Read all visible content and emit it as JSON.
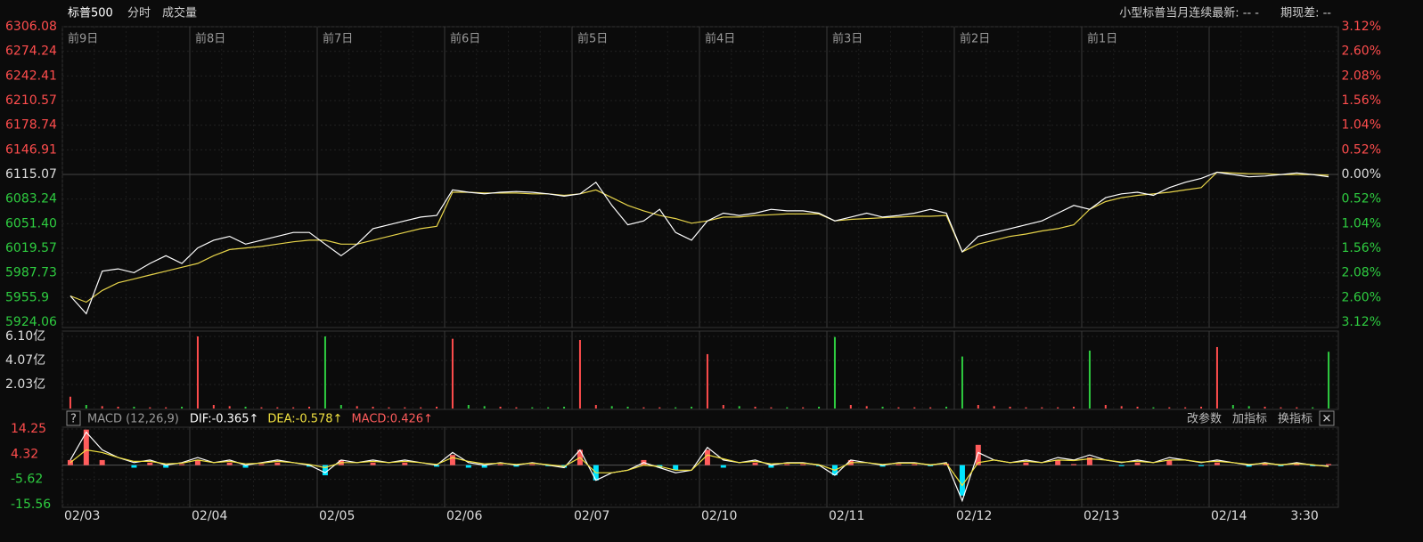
{
  "header": {
    "symbol": "标普500",
    "mode": "分时",
    "volume": "成交量",
    "latest": "小型标普当月连续最新: -- -",
    "basis": "期现差: --"
  },
  "chart_data": [
    {
      "type": "line",
      "period_labels": [
        "前9日",
        "前8日",
        "前7日",
        "前6日",
        "前5日",
        "前4日",
        "前3日",
        "前2日",
        "前1日"
      ],
      "series": [
        {
          "color": "#ffffff",
          "values": [
            5958,
            5935,
            5990,
            5993,
            5988,
            6000,
            6010,
            6000,
            6020,
            6030,
            6035,
            6025,
            6030,
            6035,
            6040,
            6040,
            6025,
            6010,
            6025,
            6045,
            6050,
            6055,
            6060,
            6062,
            6095,
            6092,
            6090,
            6092,
            6093,
            6092,
            6090,
            6087,
            6090,
            6105,
            6075,
            6050,
            6055,
            6070,
            6040,
            6030,
            6055,
            6065,
            6062,
            6065,
            6070,
            6068,
            6068,
            6065,
            6055,
            6060,
            6065,
            6060,
            6062,
            6065,
            6070,
            6065,
            6015,
            6035,
            6040,
            6045,
            6050,
            6055,
            6065,
            6075,
            6070,
            6085,
            6090,
            6092,
            6088,
            6098,
            6105,
            6110,
            6118,
            6115,
            6112,
            6113,
            6115,
            6117,
            6115,
            6112
          ]
        },
        {
          "color": "#e6d34a",
          "values": [
            5958,
            5950,
            5965,
            5975,
            5980,
            5985,
            5990,
            5995,
            6000,
            6010,
            6018,
            6020,
            6022,
            6025,
            6028,
            6030,
            6030,
            6025,
            6025,
            6030,
            6035,
            6040,
            6045,
            6048,
            6092,
            6092,
            6091,
            6091,
            6091,
            6090,
            6090,
            6088,
            6090,
            6095,
            6085,
            6075,
            6068,
            6062,
            6058,
            6052,
            6055,
            6060,
            6060,
            6062,
            6063,
            6064,
            6064,
            6064,
            6055,
            6057,
            6058,
            6059,
            6060,
            6061,
            6061,
            6062,
            6015,
            6025,
            6030,
            6035,
            6038,
            6042,
            6045,
            6050,
            6070,
            6080,
            6085,
            6088,
            6090,
            6092,
            6095,
            6098,
            6118,
            6117,
            6116,
            6116,
            6115,
            6115,
            6115,
            6114
          ]
        }
      ],
      "ylim": [
        5924.06,
        6306.08
      ],
      "yticks": [
        6306.08,
        6274.24,
        6242.41,
        6210.57,
        6178.74,
        6146.91,
        6115.07,
        6083.24,
        {
          "value": 6051.4,
          "label": "6051.40"
        },
        6019.57,
        5987.73,
        5955.9,
        5924.06
      ],
      "y2lim": [
        -3.12,
        3.12
      ],
      "y2ticks": [
        {
          "value": 3.12,
          "label": "3.12%"
        },
        {
          "value": 2.6,
          "label": "2.60%"
        },
        {
          "value": 2.08,
          "label": "2.08%"
        },
        {
          "value": 1.56,
          "label": "1.56%"
        },
        {
          "value": 1.04,
          "label": "1.04%"
        },
        {
          "value": 0.52,
          "label": "0.52%"
        },
        {
          "value": 0,
          "label": "0.00%"
        },
        {
          "value": -0.52,
          "label": "0.52%"
        },
        {
          "value": -1.04,
          "label": "1.04%"
        },
        {
          "value": -1.56,
          "label": "1.56%"
        },
        {
          "value": -2.08,
          "label": "2.08%"
        },
        {
          "value": -2.6,
          "label": "2.60%"
        },
        {
          "value": -3.12,
          "label": "3.12%"
        }
      ],
      "up_color": "#ff4d4d",
      "down_color": "#2ecc40",
      "flat_color": "#dddddd"
    },
    {
      "type": "bar",
      "values": [
        1.0,
        0.3,
        0.2,
        0.15,
        0.15,
        0.1,
        0.1,
        0.15,
        6.1,
        0.3,
        0.2,
        0.15,
        0.1,
        0.1,
        0.1,
        0.15,
        6.1,
        0.3,
        0.2,
        0.15,
        0.1,
        0.1,
        0.1,
        0.15,
        5.9,
        0.3,
        0.2,
        0.15,
        0.1,
        0.1,
        0.1,
        0.15,
        5.8,
        0.3,
        0.2,
        0.15,
        0.1,
        0.1,
        0.1,
        0.15,
        4.6,
        0.3,
        0.2,
        0.15,
        0.1,
        0.1,
        0.1,
        0.15,
        6.05,
        0.3,
        0.2,
        0.15,
        0.1,
        0.1,
        0.1,
        0.15,
        4.4,
        0.3,
        0.2,
        0.15,
        0.1,
        0.1,
        0.1,
        0.15,
        4.9,
        0.3,
        0.2,
        0.15,
        0.1,
        0.1,
        0.1,
        0.15,
        5.2,
        0.3,
        0.2,
        0.15,
        0.1,
        0.1,
        0.1,
        4.8
      ],
      "ylim": [
        0,
        6.1
      ],
      "yticks": [
        {
          "value": 6.1,
          "label": "6.10亿"
        },
        {
          "value": 4.07,
          "label": "4.07亿"
        },
        {
          "value": 2.03,
          "label": "2.03亿"
        }
      ],
      "up_color": "#ff4d4d",
      "down_color": "#2ecc40"
    },
    {
      "type": "macd",
      "title": "MACD (12,26,9)",
      "categories": [
        "02/03",
        null,
        null,
        null,
        null,
        null,
        null,
        null,
        "02/04",
        null,
        null,
        null,
        null,
        null,
        null,
        null,
        "02/05",
        null,
        null,
        null,
        null,
        null,
        null,
        null,
        "02/06",
        null,
        null,
        null,
        null,
        null,
        null,
        null,
        "02/07",
        null,
        null,
        null,
        null,
        null,
        null,
        null,
        "02/10",
        null,
        null,
        null,
        null,
        null,
        null,
        null,
        "02/11",
        null,
        null,
        null,
        null,
        null,
        null,
        null,
        "02/12",
        null,
        null,
        null,
        null,
        null,
        null,
        null,
        "02/13",
        null,
        null,
        null,
        null,
        null,
        null,
        null,
        "02/14",
        null,
        null,
        null,
        null,
        "3:30",
        null,
        null
      ],
      "series": [
        {
          "name": "DIF:-0.365↑",
          "color": "#ffffff",
          "values": [
            2,
            13,
            6,
            3,
            1,
            2,
            0,
            1,
            3,
            1,
            2,
            0,
            1,
            2,
            1,
            0,
            -3,
            2,
            1,
            2,
            1,
            2,
            1,
            0,
            5,
            1,
            0,
            1,
            0,
            1,
            0,
            -1,
            6,
            -6,
            -3,
            -2,
            1,
            -1,
            -3,
            -2,
            7,
            2,
            1,
            2,
            0,
            1,
            1,
            0,
            -4,
            2,
            1,
            0,
            1,
            1,
            0,
            1,
            -14,
            5,
            2,
            1,
            2,
            1,
            3,
            2,
            4,
            2,
            1,
            2,
            1,
            3,
            2,
            1,
            2,
            1,
            0,
            1,
            0,
            1,
            0,
            -0.365
          ]
        },
        {
          "name": "DEA:-0.578↑",
          "color": "#f0e040",
          "values": [
            1,
            6,
            5,
            3,
            1.5,
            1.5,
            0.5,
            0.8,
            2,
            1,
            1.5,
            0.5,
            0.8,
            1.5,
            1,
            0.3,
            -1,
            1,
            1,
            1.5,
            1,
            1.5,
            1,
            0.3,
            3,
            1.5,
            0.5,
            0.8,
            0.3,
            0.8,
            0.2,
            -0.5,
            3,
            -3,
            -3,
            -2,
            0,
            -0.5,
            -2,
            -2,
            4,
            2.5,
            1,
            1.5,
            0.5,
            0.8,
            0.8,
            0.2,
            -2,
            1,
            1,
            0.3,
            0.8,
            0.8,
            0.2,
            0.7,
            -8,
            1,
            2,
            1,
            1.5,
            1,
            2,
            1.8,
            2.5,
            2,
            1.2,
            1.5,
            1,
            2,
            2,
            1.2,
            1.5,
            1,
            0.3,
            0.7,
            0.2,
            0.6,
            0.2,
            -0.578
          ]
        },
        {
          "name": "MACD:0.426↑",
          "color": "#ff5c5c",
          "down_color": "#00e5ff",
          "values": [
            2,
            14,
            2,
            0,
            -1,
            1,
            -1,
            0.4,
            2,
            0,
            1,
            -1,
            0.4,
            1,
            0,
            -0.6,
            -4,
            2,
            0,
            1,
            0,
            1,
            0,
            -0.6,
            4,
            -1,
            -1,
            0.4,
            -0.6,
            0.4,
            -0.4,
            -1,
            6,
            -6,
            0,
            0,
            2,
            -1,
            -2,
            0,
            6,
            -1,
            0,
            1,
            -1,
            0.4,
            0.4,
            -0.4,
            -4,
            2,
            0,
            -0.6,
            0.4,
            0.4,
            -0.4,
            0.6,
            -12,
            8,
            0,
            0,
            1,
            0,
            2,
            0.4,
            3,
            0,
            -0.4,
            1,
            0,
            2,
            0,
            -0.4,
            1,
            0,
            -0.6,
            0.6,
            -0.4,
            0.8,
            -0.4,
            0.426
          ]
        }
      ],
      "ylim": [
        -15.56,
        14.25
      ],
      "yticks": [
        14.25,
        4.32,
        -5.62,
        -15.56
      ]
    }
  ],
  "toolbar": {
    "help": "?",
    "buttons": [
      "改参数",
      "加指标",
      "换指标"
    ],
    "close": "✕"
  }
}
